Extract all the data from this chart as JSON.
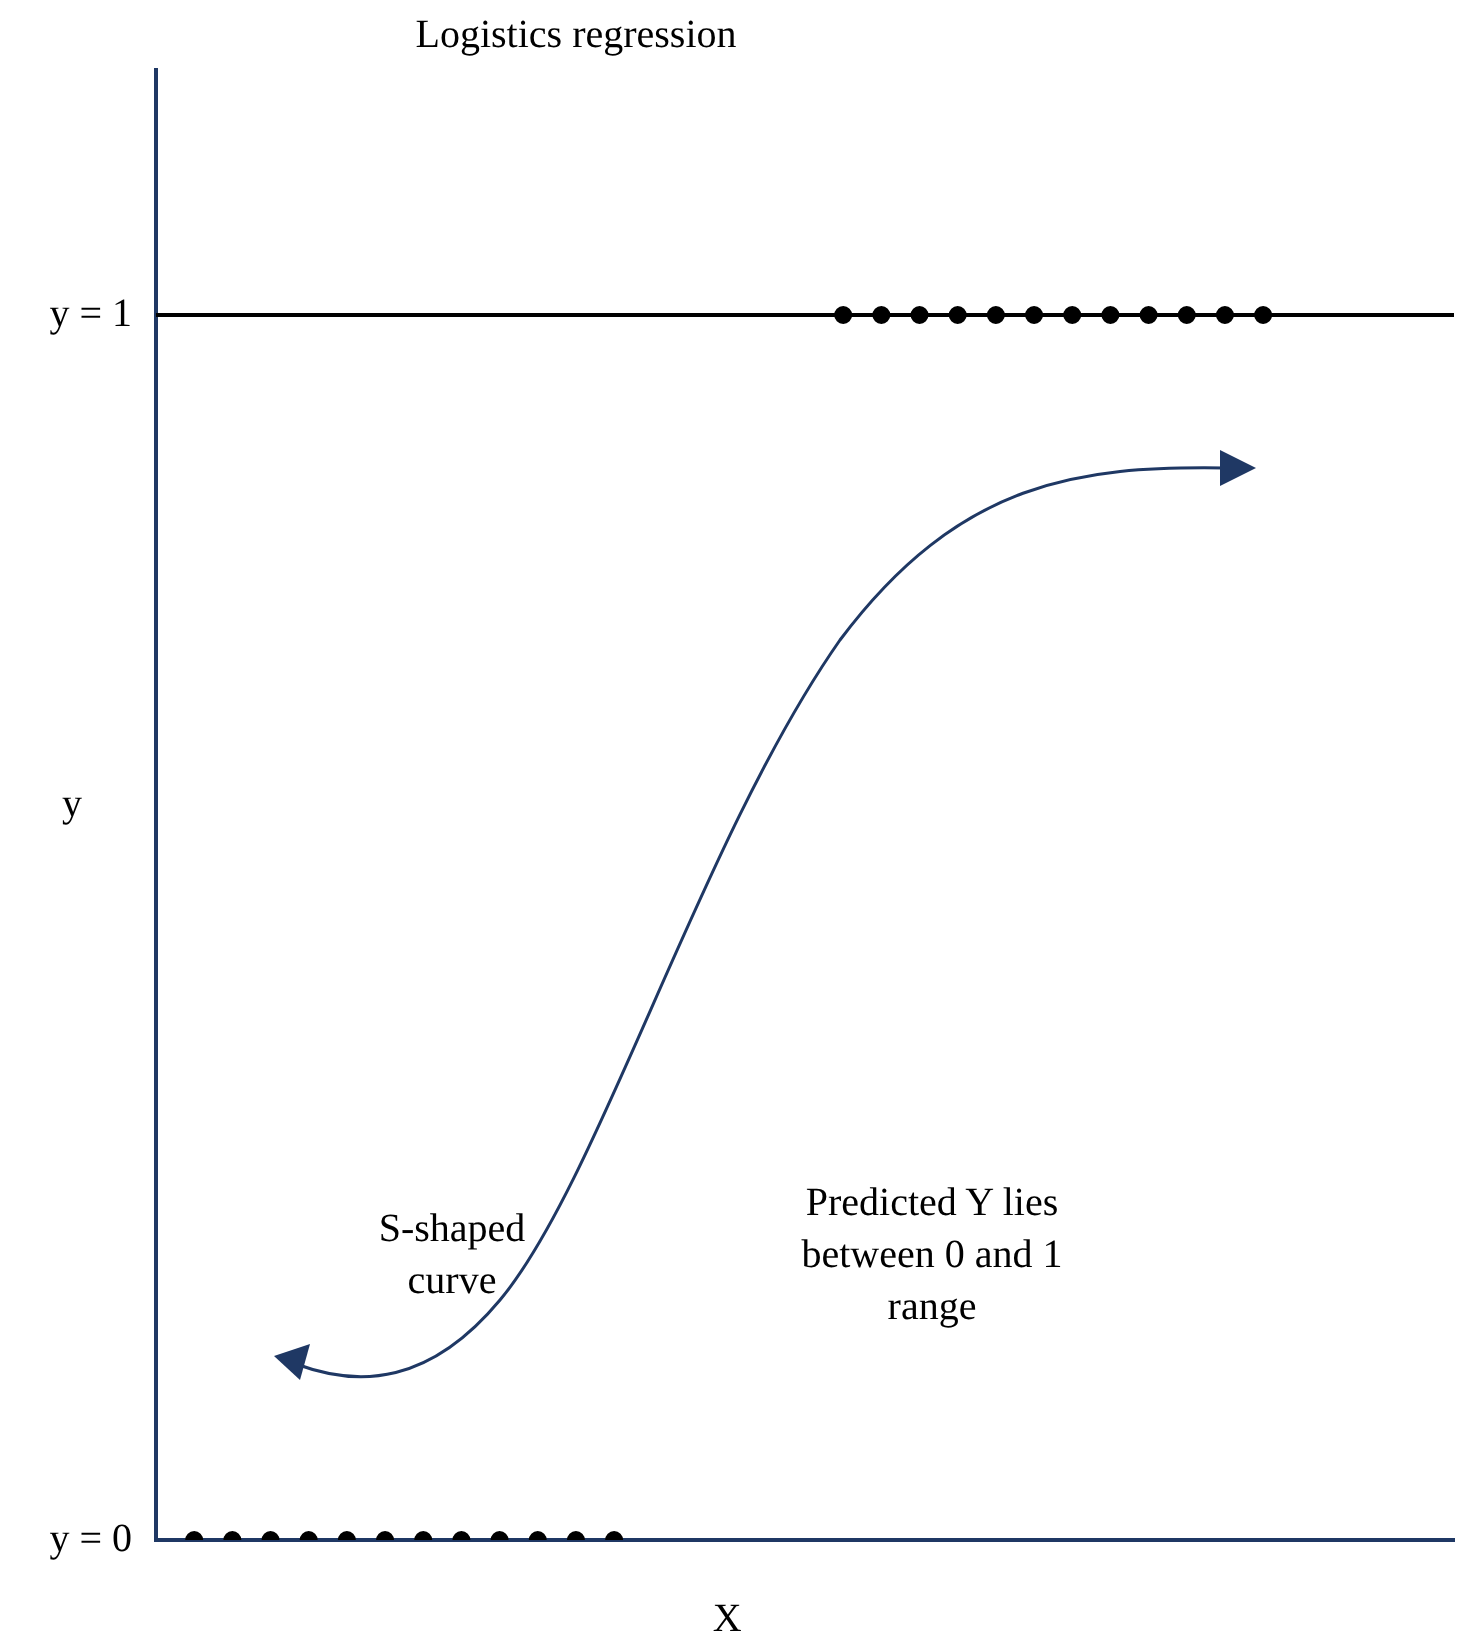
{
  "chart_data": {
    "type": "scatter",
    "title": "Logistics regression",
    "xlabel": "X",
    "ylabel": "y",
    "categories": [
      null,
      null,
      null,
      null,
      null,
      null,
      null,
      null,
      null,
      null,
      null,
      null,
      null,
      null,
      null,
      null,
      null,
      null,
      null,
      null,
      null,
      null,
      null,
      null,
      null,
      null,
      null,
      null,
      null,
      null,
      null,
      null,
      null,
      null,
      null
    ],
    "values": [
      null,
      0,
      0,
      0,
      0,
      0,
      0,
      0,
      0,
      0,
      0,
      0,
      0,
      null,
      null,
      null,
      null,
      null,
      1,
      1,
      1,
      1,
      1,
      1,
      1,
      1,
      1,
      1,
      1,
      1,
      null,
      null,
      null,
      null,
      null
    ],
    "color": "#000000",
    "marker": "circle",
    "grid": false,
    "tick_labels": "y",
    "ylim": [
      0,
      1.2
    ],
    "yticks": [
      {
        "value": 0,
        "label": "y = 0"
      },
      {
        "value": 1,
        "label": "y = 1"
      }
    ],
    "ref_lines": [
      {
        "axis": "y",
        "value": 1,
        "color": "#000000"
      }
    ],
    "annotations": [
      "S-shaped curve",
      "Predicted Y lies between 0 and 1 range"
    ]
  }
}
